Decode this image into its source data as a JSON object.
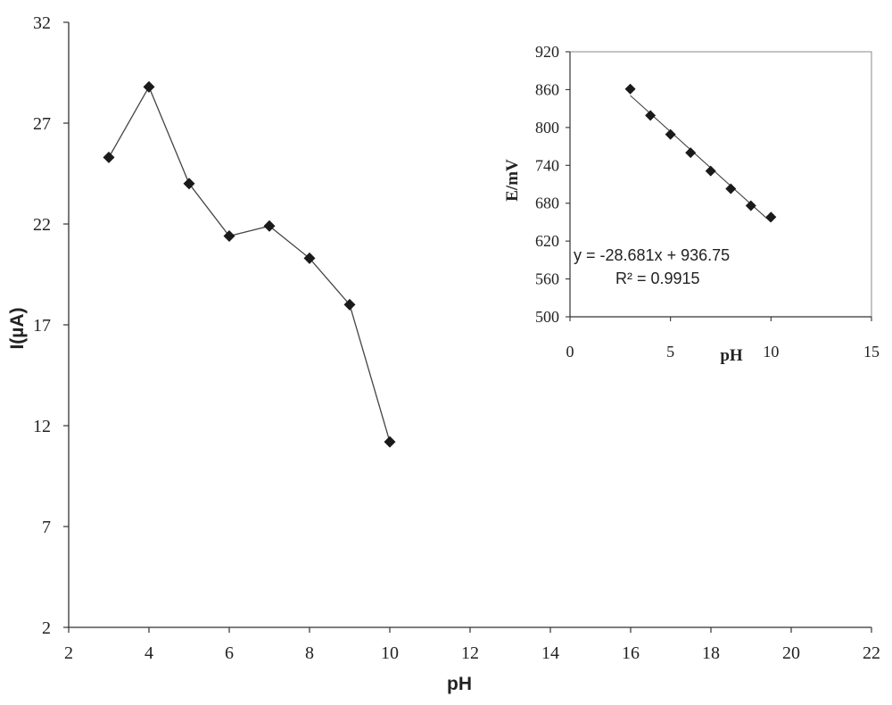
{
  "chart_data": [
    {
      "type": "line",
      "title": "",
      "xlabel": "pH",
      "ylabel": "I(µA)",
      "xlim": [
        2,
        22
      ],
      "ylim": [
        2,
        32
      ],
      "xticks": [
        2,
        4,
        6,
        8,
        10,
        12,
        14,
        16,
        18,
        20,
        22
      ],
      "yticks": [
        2,
        7,
        12,
        17,
        22,
        27,
        32
      ],
      "marker": "diamond",
      "grid": false,
      "legend": "none",
      "series": [
        {
          "x": [
            3,
            4,
            5,
            6,
            7,
            8,
            9,
            10
          ],
          "y": [
            25.3,
            28.8,
            24.0,
            21.4,
            21.9,
            20.3,
            18.0,
            11.2
          ]
        }
      ]
    },
    {
      "type": "scatter",
      "title": "",
      "xlabel": "pH",
      "ylabel": "E/mV",
      "xlim": [
        0,
        15
      ],
      "ylim": [
        500,
        920
      ],
      "xticks": [
        0,
        5,
        10,
        15
      ],
      "yticks": [
        500,
        560,
        620,
        680,
        740,
        800,
        860,
        920
      ],
      "marker": "diamond",
      "grid": false,
      "legend": "none",
      "series": [
        {
          "x": [
            3,
            4,
            5,
            6,
            7,
            8,
            9,
            10
          ],
          "y": [
            861,
            819,
            789,
            760,
            731,
            703,
            676,
            658
          ]
        }
      ],
      "trendline": {
        "slope": -28.681,
        "intercept": 936.75,
        "x_range": [
          3,
          10
        ]
      },
      "annotations": [
        "y = -28.681x + 936.75",
        "R² = 0.9915"
      ]
    }
  ],
  "colors": {
    "marker": "#1a1a1a",
    "line": "#444444",
    "axis": "#333333"
  }
}
